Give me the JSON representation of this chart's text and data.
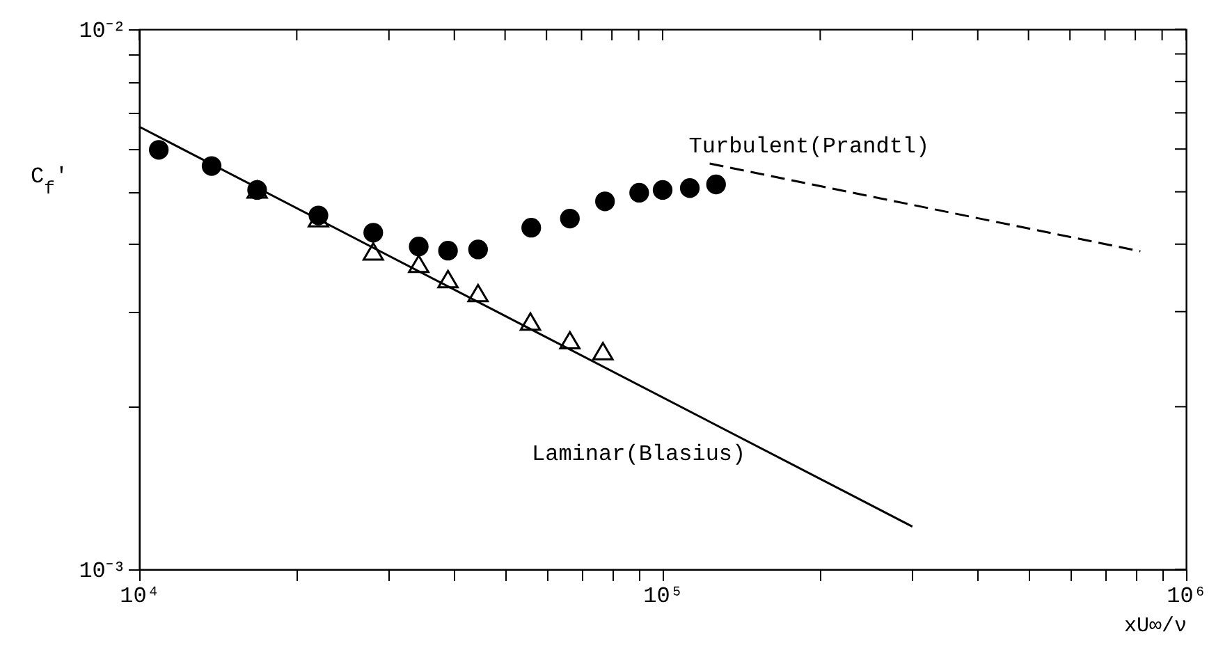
{
  "chart_data": {
    "type": "scatter",
    "xlabel": "xU∞/ν",
    "ylabel": "C$_{f}$'",
    "log": "xy",
    "grid": false,
    "xlim": [
      10000,
      1000000
    ],
    "ylim": [
      0.001,
      0.01
    ],
    "xticks": [
      {
        "value": 10000,
        "label": "10⁴"
      },
      {
        "value": 20000,
        "label": null
      },
      {
        "value": 30000,
        "label": null
      },
      {
        "value": 40000,
        "label": null
      },
      {
        "value": 50000,
        "label": null
      },
      {
        "value": 60000,
        "label": null
      },
      {
        "value": 70000,
        "label": null
      },
      {
        "value": 80000,
        "label": null
      },
      {
        "value": 90000,
        "label": null
      },
      {
        "value": 100000,
        "label": "10⁵"
      },
      {
        "value": 200000,
        "label": null
      },
      {
        "value": 300000,
        "label": null
      },
      {
        "value": 400000,
        "label": null
      },
      {
        "value": 500000,
        "label": null
      },
      {
        "value": 600000,
        "label": null
      },
      {
        "value": 700000,
        "label": null
      },
      {
        "value": 800000,
        "label": null
      },
      {
        "value": 900000,
        "label": null
      },
      {
        "value": 1000000,
        "label": "10⁶"
      }
    ],
    "yticks": [
      {
        "value": 0.001,
        "label": "10⁻³"
      },
      {
        "value": 0.002,
        "label": null
      },
      {
        "value": 0.003,
        "label": null
      },
      {
        "value": 0.004,
        "label": null
      },
      {
        "value": 0.005,
        "label": null
      },
      {
        "value": 0.006,
        "label": null
      },
      {
        "value": 0.007,
        "label": null
      },
      {
        "value": 0.008,
        "label": null
      },
      {
        "value": 0.009,
        "label": null
      },
      {
        "value": 0.01,
        "label": "10⁻²"
      }
    ],
    "series": [
      {
        "type": "line",
        "name": "Laminar(Blasius)",
        "color": "#000000",
        "line_style": "solid",
        "marker": "none",
        "x": [
          10000,
          300000
        ],
        "values": [
          0.0066,
          0.0012
        ]
      },
      {
        "type": "line",
        "name": "Turbulent(Prandtl)",
        "color": "#000000",
        "line_style": "dashed",
        "marker": "none",
        "x": [
          123000,
          818000
        ],
        "values": [
          0.00564,
          0.00388
        ]
      },
      {
        "color": "#000000",
        "marker": "circle",
        "x": [
          10900,
          13750,
          16800,
          22000,
          28000,
          34200,
          38900,
          44400,
          56100,
          66500,
          77600,
          90200,
          100000,
          112700,
          126500
        ],
        "values": [
          0.00598,
          0.00558,
          0.00504,
          0.00452,
          0.0042,
          0.00396,
          0.00389,
          0.00391,
          0.00429,
          0.00446,
          0.0048,
          0.00498,
          0.00504,
          0.00508,
          0.00516
        ]
      },
      {
        "color": "#000000",
        "marker": "triangle",
        "x": [
          16800,
          22000,
          28000,
          34200,
          38900,
          44400,
          55900,
          66500,
          76900
        ],
        "values": [
          0.00504,
          0.00446,
          0.00387,
          0.00367,
          0.00344,
          0.00324,
          0.00287,
          0.00265,
          0.00253
        ]
      }
    ]
  }
}
